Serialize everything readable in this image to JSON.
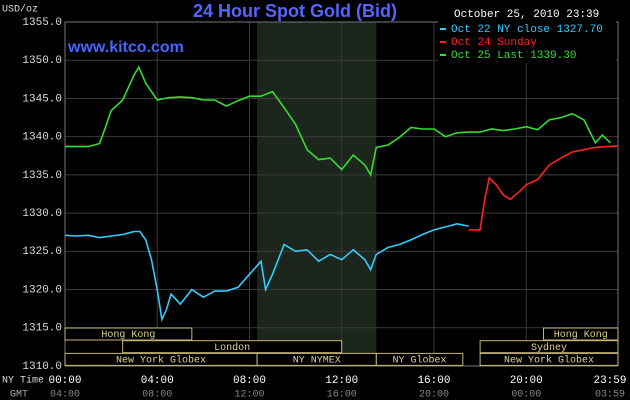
{
  "chart_data": {
    "type": "line",
    "title": "24 Hour Spot Gold (Bid)",
    "watermark": "www.kitco.com",
    "timestamp": "October 25, 2010 23:39",
    "y_label": "USD/oz",
    "x_label": "NY Time",
    "x2_label": "GMT",
    "xlim": [
      0,
      23.98
    ],
    "ylim": [
      1310,
      1355
    ],
    "yticks": [
      {
        "value": 1310,
        "label": "1310.0"
      },
      {
        "value": 1315,
        "label": "1315.0"
      },
      {
        "value": 1320,
        "label": "1320.0"
      },
      {
        "value": 1325,
        "label": "1325.0"
      },
      {
        "value": 1330,
        "label": "1330.0"
      },
      {
        "value": 1335,
        "label": "1335.0"
      },
      {
        "value": 1340,
        "label": "1340.0"
      },
      {
        "value": 1345,
        "label": "1345.0"
      },
      {
        "value": 1350,
        "label": "1350.0"
      },
      {
        "value": 1355,
        "label": "1355.0"
      }
    ],
    "xticks": [
      {
        "value": 0,
        "label": "00:00"
      },
      {
        "value": 4,
        "label": "04:00"
      },
      {
        "value": 8,
        "label": "08:00"
      },
      {
        "value": 12,
        "label": "12:00"
      },
      {
        "value": 16,
        "label": "16:00"
      },
      {
        "value": 20,
        "label": "20:00"
      },
      {
        "value": 23.98,
        "label": "23:59"
      }
    ],
    "x2ticks": [
      {
        "value": 0,
        "label": "04:00"
      },
      {
        "value": 4,
        "label": "08:00"
      },
      {
        "value": 8,
        "label": "12:00"
      },
      {
        "value": 12,
        "label": "16:00"
      },
      {
        "value": 16,
        "label": "20:00"
      },
      {
        "value": 20,
        "label": "00:00"
      },
      {
        "value": 23.98,
        "label": "03:59"
      }
    ],
    "grid": true,
    "legend": "upper right",
    "shade": [
      8.33,
      13.5
    ],
    "sessions": [
      [
        {
          "label": "Hong Kong",
          "start": 0,
          "end": 5.5
        },
        {
          "label": "Hong Kong",
          "start": 20.75,
          "end": 23.98
        }
      ],
      [
        {
          "label": "London",
          "start": 2.5,
          "end": 12
        },
        {
          "label": "Sydney",
          "start": 18,
          "end": 23.98
        }
      ],
      [
        {
          "label": "New York Globex",
          "start": 0,
          "end": 8.33
        },
        {
          "label": "NY NYMEX",
          "start": 8.33,
          "end": 13.5
        },
        {
          "label": "NY Globex",
          "start": 13.5,
          "end": 17.25
        },
        {
          "label": "New York Globex",
          "start": 18,
          "end": 23.98
        }
      ]
    ],
    "series": [
      {
        "name": "Oct 22 NY close 1327.70",
        "color": "#33ccff",
        "x": [
          0,
          0.5,
          1,
          1.5,
          2,
          2.5,
          3,
          3.25,
          3.5,
          3.75,
          4,
          4.2,
          4.4,
          4.6,
          5,
          5.5,
          6,
          6.5,
          7,
          7.5,
          8,
          8.5,
          8.7,
          9,
          9.5,
          10,
          10.5,
          11,
          11.5,
          12,
          12.5,
          13,
          13.25,
          13.5,
          14,
          14.5,
          15,
          15.5,
          16,
          16.5,
          17,
          17.5
        ],
        "values": [
          1327.1,
          1327,
          1327.1,
          1326.8,
          1327,
          1327.2,
          1327.6,
          1327.6,
          1326.5,
          1323.9,
          1320,
          1316.1,
          1317.4,
          1319.4,
          1318.1,
          1320,
          1319,
          1319.8,
          1319.8,
          1320.3,
          1322,
          1323.7,
          1320,
          1322,
          1325.9,
          1325,
          1325.2,
          1323.7,
          1324.6,
          1323.9,
          1325.2,
          1323.9,
          1322.6,
          1324.6,
          1325.5,
          1325.9,
          1326.5,
          1327.2,
          1327.8,
          1328.2,
          1328.6,
          1328.3
        ]
      },
      {
        "name": "Oct 24 Sunday",
        "color": "#ff2020",
        "x": [
          17.5,
          18,
          18.2,
          18.4,
          18.7,
          19,
          19.3,
          19.7,
          20,
          20.5,
          21,
          21.5,
          22,
          22.5,
          23,
          23.5,
          23.98
        ],
        "values": [
          1327.8,
          1327.8,
          1331.8,
          1334.6,
          1333.7,
          1332.4,
          1331.8,
          1332.8,
          1333.7,
          1334.4,
          1336.3,
          1337.2,
          1338,
          1338.3,
          1338.6,
          1338.7,
          1338.8
        ]
      },
      {
        "name": "Oct 25 Last 1339.30",
        "color": "#33dd33",
        "x": [
          0,
          0.5,
          1,
          1.5,
          1.75,
          2,
          2.5,
          3,
          3.2,
          3.5,
          4,
          4.5,
          5,
          5.5,
          6,
          6.5,
          7,
          7.5,
          8,
          8.5,
          9,
          9.5,
          10,
          10.5,
          11,
          11.5,
          12,
          12.5,
          13,
          13.25,
          13.5,
          14,
          14.5,
          15,
          15.5,
          16,
          16.5,
          17,
          17.5,
          18,
          18.5,
          19,
          19.5,
          20,
          20.5,
          21,
          21.5,
          22,
          22.5,
          23,
          23.3,
          23.65
        ],
        "values": [
          1338.7,
          1338.7,
          1338.7,
          1339.1,
          1341.2,
          1343.4,
          1344.8,
          1348.1,
          1349.1,
          1347,
          1344.8,
          1345.1,
          1345.2,
          1345.1,
          1344.8,
          1344.8,
          1344,
          1344.7,
          1345.3,
          1345.3,
          1345.9,
          1343.8,
          1341.6,
          1338.3,
          1337,
          1337.2,
          1335.7,
          1337.6,
          1336.3,
          1335,
          1338.6,
          1338.9,
          1339.9,
          1341.2,
          1341,
          1341,
          1340,
          1340.5,
          1340.6,
          1340.6,
          1341,
          1340.8,
          1341,
          1341.3,
          1340.9,
          1342.2,
          1342.5,
          1343,
          1342.2,
          1339.2,
          1340.2,
          1339.2
        ]
      }
    ]
  }
}
